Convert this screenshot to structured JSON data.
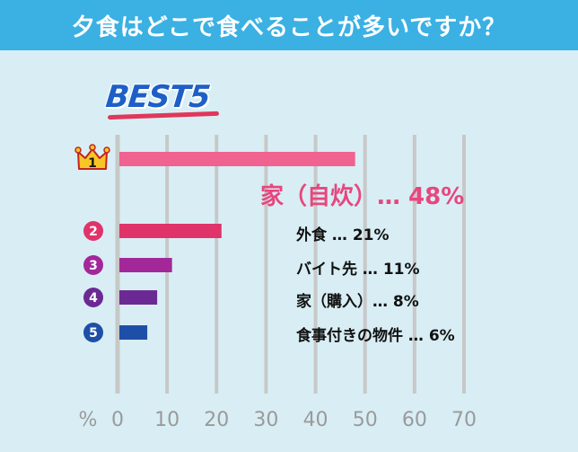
{
  "header": {
    "title": "夕食はどこで食べることが多いですか？"
  },
  "badge": {
    "text": "BEST5"
  },
  "chart_data": {
    "type": "bar",
    "orientation": "horizontal",
    "categories": [
      "家（自炊）",
      "外食",
      "バイト先",
      "家（購入）",
      "食事付きの物件"
    ],
    "values": [
      48,
      21,
      11,
      8,
      6
    ],
    "ranks": [
      "1",
      "2",
      "3",
      "4",
      "5"
    ],
    "labels": [
      "家（自炊）…  48%",
      "外食  …  21%",
      "バイト先  …  11%",
      "家（購入）…  8%",
      "食事付きの物件  …  6%"
    ],
    "xlabel": "%",
    "xlim": [
      0,
      70
    ],
    "xticks": [
      "0",
      "10",
      "20",
      "30",
      "40",
      "50",
      "60",
      "70"
    ],
    "grid": true,
    "colors": [
      "#f0628f",
      "#e0336a",
      "#a2289a",
      "#6b2a93",
      "#1e4fa8"
    ],
    "crown_color": "#f7c626"
  }
}
